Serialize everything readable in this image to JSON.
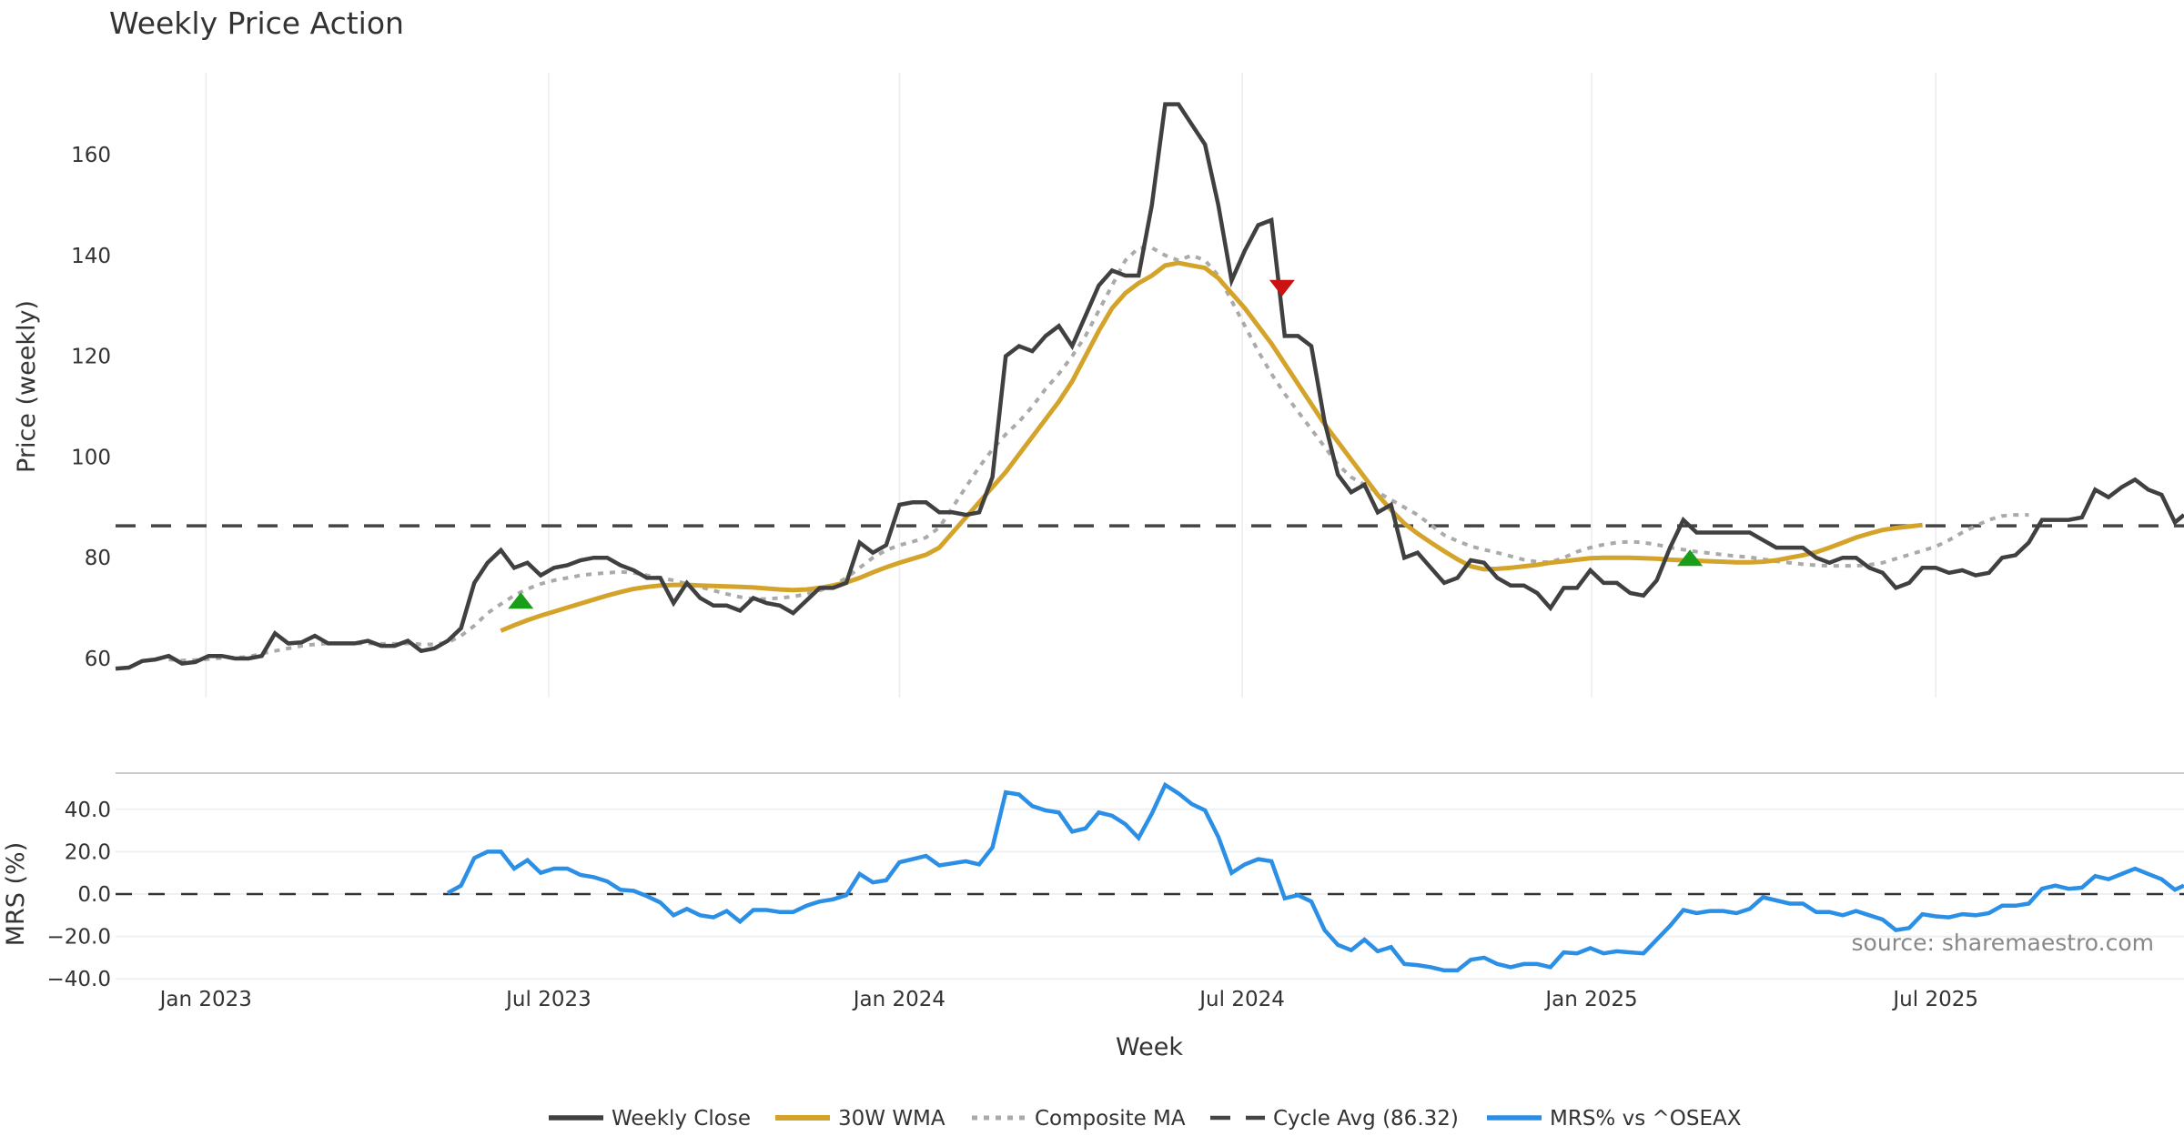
{
  "chart_data": {
    "type": "line",
    "title": "Weekly Price Action",
    "xlabel": "Week",
    "source": "source: sharemaestro.com",
    "x_start_week": "2022-11-14",
    "x_tick_labels": [
      "Jan 2023",
      "Jul 2023",
      "Jan 2024",
      "Jul 2024",
      "Jan 2025",
      "Jul 2025"
    ],
    "x_tick_weeks": [
      6.8,
      32.6,
      59.0,
      84.8,
      111.1,
      137.0
    ],
    "price_panel": {
      "ylabel": "Price (weekly)",
      "ylim": [
        53,
        176
      ],
      "y_ticks": [
        60,
        80,
        100,
        120,
        140,
        160
      ],
      "y_tick_labels": [
        "60",
        "80",
        "100",
        "120",
        "140",
        "160"
      ],
      "cycle_avg": 86.32
    },
    "mrs_panel": {
      "ylabel": "MRS (%)",
      "ylim": [
        -40,
        52
      ],
      "y_ticks": [
        40,
        20,
        0,
        -20,
        -40
      ],
      "y_tick_labels": [
        "40.0",
        "20.0",
        "0.0",
        "−20.0",
        "−40.0"
      ]
    },
    "series": [
      {
        "name": "Weekly Close",
        "color": "#404040",
        "start_week": 0,
        "values": [
          58,
          58.2,
          59.5,
          59.8,
          60.5,
          59,
          59.3,
          60.5,
          60.5,
          60,
          60,
          60.5,
          65,
          63,
          63.2,
          64.5,
          63,
          63,
          63,
          63.5,
          62.5,
          62.5,
          63.5,
          61.5,
          62,
          63.5,
          66,
          75,
          79,
          81.5,
          78,
          79,
          76.5,
          78,
          78.5,
          79.5,
          80,
          80,
          78.5,
          77.5,
          76,
          76,
          71,
          75,
          72,
          70.5,
          70.5,
          69.5,
          72,
          71,
          70.5,
          69,
          71.5,
          74,
          74,
          75,
          83,
          81,
          82.5,
          90.5,
          91,
          91,
          89,
          89,
          88.5,
          89,
          96,
          120,
          122,
          121,
          124,
          126,
          122,
          128,
          134,
          137,
          136,
          136,
          150,
          170,
          170,
          166,
          162,
          150,
          135,
          141,
          146,
          147,
          124,
          124,
          122,
          107,
          96.5,
          93,
          94.5,
          89,
          90.5,
          80,
          81,
          78,
          75,
          76,
          79.5,
          79,
          76,
          74.5,
          74.5,
          73,
          70,
          74,
          74,
          77.5,
          75,
          75,
          73,
          72.5,
          75.5,
          82,
          87.5,
          85,
          85,
          85,
          85,
          85,
          83.5,
          82,
          82,
          82,
          80,
          79,
          80,
          80,
          78,
          77,
          74,
          75,
          78,
          78,
          77,
          77.5,
          76.5,
          77,
          80,
          80.5,
          83,
          87.5,
          87.5,
          87.5,
          88,
          93.5,
          92,
          94,
          95.5,
          93.5,
          92.5,
          87,
          88.5
        ]
      },
      {
        "name": "30W WMA",
        "color": "#D4A32A",
        "start_week": 29,
        "values": [
          65.5,
          66.6,
          67.6,
          68.5,
          69.3,
          70.1,
          70.9,
          71.7,
          72.5,
          73.2,
          73.8,
          74.2,
          74.5,
          74.6,
          74.6,
          74.5,
          74.4,
          74.3,
          74.2,
          74.1,
          73.9,
          73.7,
          73.6,
          73.7,
          74,
          74.5,
          75.1,
          76,
          77.1,
          78.1,
          79,
          79.8,
          80.6,
          82,
          85,
          88,
          91,
          94,
          97,
          100.5,
          104,
          107.5,
          111,
          115,
          120,
          125,
          129.5,
          132.5,
          134.5,
          136,
          138,
          138.5,
          138,
          137.5,
          135.5,
          132.5,
          129.5,
          126,
          122.5,
          118.5,
          114.5,
          110.5,
          106.5,
          103,
          99.5,
          96,
          92.5,
          89.5,
          86.8,
          84.8,
          83,
          81.3,
          79.7,
          78.3,
          77.7,
          77.8,
          78,
          78.3,
          78.6,
          79,
          79.3,
          79.6,
          79.9,
          80,
          80,
          80,
          79.9,
          79.8,
          79.6,
          79.5,
          79.4,
          79.3,
          79.2,
          79.1,
          79.1,
          79.2,
          79.5,
          80,
          80.5,
          81.1,
          82,
          83,
          84,
          84.8,
          85.5,
          85.9,
          86.2,
          86.5
        ]
      },
      {
        "name": "Composite MA",
        "color": "#AAAAAA",
        "start_week": 4,
        "values": [
          59.8,
          59.6,
          59.7,
          59.9,
          60.1,
          60.2,
          60.3,
          61,
          61.5,
          62,
          62.5,
          62.8,
          63,
          63,
          63,
          63,
          62.9,
          62.9,
          63,
          62.8,
          62.8,
          63.2,
          64.5,
          66.5,
          69,
          70.8,
          72.5,
          73.8,
          74.8,
          75.5,
          76,
          76.5,
          76.8,
          77,
          77.2,
          77,
          76.5,
          76,
          75.5,
          74.8,
          74.2,
          73.5,
          72.8,
          72.2,
          71.8,
          71.8,
          72,
          72.3,
          72.8,
          73.5,
          74.5,
          76,
          78,
          80,
          81.5,
          82.5,
          83.2,
          84,
          86,
          90,
          94,
          98,
          101.5,
          104.5,
          107,
          110,
          113.5,
          116.5,
          120,
          124,
          129,
          134,
          139,
          141.5,
          141.5,
          140,
          139,
          140,
          139,
          136,
          131,
          126,
          121,
          116.5,
          112.5,
          109,
          105.5,
          102,
          98.5,
          96,
          94.5,
          93,
          91.5,
          90,
          88.5,
          86.5,
          84.5,
          83.3,
          82.3,
          81.6,
          81,
          80.3,
          79.6,
          79.2,
          79.1,
          80,
          81.2,
          82,
          82.6,
          83,
          83.2,
          83,
          82.6,
          82,
          81.6,
          81.2,
          80.9,
          80.6,
          80.3,
          80.1,
          79.7,
          79.3,
          79,
          78.7,
          78.5,
          78.4,
          78.4,
          78.4,
          78.6,
          79,
          79.8,
          80.6,
          81.4,
          82.2,
          83.5,
          85,
          86.3,
          87.5,
          88.3,
          88.5,
          88.5
        ]
      },
      {
        "name": "Cycle Avg (86.32)",
        "color": "#444444",
        "constant": 86.32
      },
      {
        "name": "MRS% vs ^OSEAX",
        "color": "#2B8FE6",
        "start_week": 25,
        "values": [
          0.5,
          4,
          17,
          20,
          20,
          12,
          16,
          10,
          12,
          12,
          9,
          8,
          6,
          2,
          1.5,
          -1,
          -4,
          -10,
          -7,
          -10,
          -11,
          -8,
          -13,
          -7.5,
          -7.5,
          -8.5,
          -8.5,
          -5.5,
          -3.5,
          -2.5,
          -0.5,
          9.5,
          5.5,
          6.5,
          15,
          16.5,
          18,
          13.5,
          14.5,
          15.5,
          14,
          22,
          48,
          47,
          41.5,
          39.5,
          38.5,
          29.5,
          31,
          38.5,
          37,
          33,
          26.5,
          38,
          51.5,
          47.5,
          42.5,
          39.5,
          27,
          10,
          14,
          16.5,
          15.5,
          -2,
          -0.5,
          -3.5,
          -17,
          -24,
          -26.5,
          -21.5,
          -27,
          -25,
          -33,
          -33.5,
          -34.5,
          -36,
          -36,
          -31,
          -30,
          -33,
          -34.5,
          -33,
          -33,
          -34.5,
          -27.5,
          -28,
          -25.5,
          -28,
          -27,
          -27.5,
          -28,
          -21.5,
          -15,
          -7.5,
          -9,
          -8,
          -8,
          -9,
          -7,
          -1.5,
          -3,
          -4.5,
          -4.5,
          -8.5,
          -8.5,
          -10,
          -8,
          -10,
          -12,
          -17,
          -16,
          -9.5,
          -10.5,
          -11,
          -9.5,
          -10,
          -9,
          -5.5,
          -5.5,
          -4.5,
          2.5,
          4,
          2.5,
          3,
          8.5,
          7,
          9.5,
          12,
          9.5,
          7,
          2,
          4
        ]
      }
    ],
    "signals": [
      {
        "type": "buy",
        "week": 30.5,
        "price": 71.5,
        "color": "#1A9E1A"
      },
      {
        "type": "sell",
        "week": 87.8,
        "price": 133.5,
        "color": "#CC1111"
      },
      {
        "type": "buy",
        "week": 118.5,
        "price": 80,
        "color": "#1A9E1A"
      }
    ],
    "legend": {
      "position": "bottom-center",
      "items": [
        "Weekly Close",
        "30W WMA",
        "Composite MA",
        "Cycle Avg (86.32)",
        "MRS% vs ^OSEAX"
      ]
    }
  }
}
